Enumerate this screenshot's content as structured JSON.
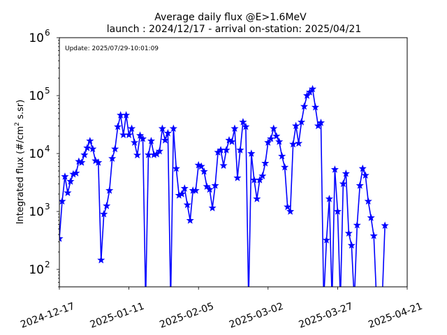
{
  "chart_data": {
    "type": "line",
    "title": "Average daily flux @E>1.6MeV",
    "subtitle": "launch : 2024/12/17 - arrival on-station: 2025/04/21",
    "annotation": "Update: 2025/07/29-10:01:09",
    "xlabel": "",
    "ylabel": {
      "base": "10",
      "prefix": "Integrated flux (#/cm",
      "superscript": "2",
      "suffix": " s.sr)"
    },
    "y_scale": "log",
    "ylim": [
      50,
      1000000
    ],
    "xlim": [
      "2024-12-17",
      "2025-04-21"
    ],
    "x_ticks": [
      "2024-12-17",
      "2025-01-11",
      "2025-02-05",
      "2025-03-02",
      "2025-03-27",
      "2025-04-21"
    ],
    "y_ticks": [
      {
        "value": 100,
        "base": "10",
        "exp": "2"
      },
      {
        "value": 1000,
        "base": "10",
        "exp": "3"
      },
      {
        "value": 10000,
        "base": "10",
        "exp": "4"
      },
      {
        "value": 100000,
        "base": "10",
        "exp": "5"
      },
      {
        "value": 1000000,
        "base": "10",
        "exp": "6"
      }
    ],
    "grid": false,
    "series": [
      {
        "color": "#0000ff",
        "marker": "star",
        "points": [
          {
            "x": "2024-12-17",
            "y": 340
          },
          {
            "x": "2024-12-18",
            "y": 1500
          },
          {
            "x": "2024-12-19",
            "y": 4000
          },
          {
            "x": "2024-12-20",
            "y": 2100
          },
          {
            "x": "2024-12-21",
            "y": 3300
          },
          {
            "x": "2024-12-22",
            "y": 4400
          },
          {
            "x": "2024-12-23",
            "y": 4600
          },
          {
            "x": "2024-12-24",
            "y": 7300
          },
          {
            "x": "2024-12-25",
            "y": 7000
          },
          {
            "x": "2024-12-26",
            "y": 9500
          },
          {
            "x": "2024-12-27",
            "y": 12500
          },
          {
            "x": "2024-12-28",
            "y": 16500
          },
          {
            "x": "2024-12-29",
            "y": 12000
          },
          {
            "x": "2024-12-30",
            "y": 7500
          },
          {
            "x": "2024-12-31",
            "y": 7000
          },
          {
            "x": "2025-01-01",
            "y": 145
          },
          {
            "x": "2025-01-02",
            "y": 900
          },
          {
            "x": "2025-01-03",
            "y": 1250
          },
          {
            "x": "2025-01-04",
            "y": 2300
          },
          {
            "x": "2025-01-05",
            "y": 8200
          },
          {
            "x": "2025-01-06",
            "y": 12000
          },
          {
            "x": "2025-01-07",
            "y": 29000
          },
          {
            "x": "2025-01-08",
            "y": 46000
          },
          {
            "x": "2025-01-09",
            "y": 21000
          },
          {
            "x": "2025-01-10",
            "y": 46000
          },
          {
            "x": "2025-01-11",
            "y": 21000
          },
          {
            "x": "2025-01-12",
            "y": 27000
          },
          {
            "x": "2025-01-13",
            "y": 15500
          },
          {
            "x": "2025-01-14",
            "y": 9400
          },
          {
            "x": "2025-01-15",
            "y": 20500
          },
          {
            "x": "2025-01-16",
            "y": 18000
          },
          {
            "x": "2025-01-17",
            "y": null
          },
          {
            "x": "2025-01-18",
            "y": 9500
          },
          {
            "x": "2025-01-19",
            "y": 16500
          },
          {
            "x": "2025-01-20",
            "y": 9500
          },
          {
            "x": "2025-01-21",
            "y": 9800
          },
          {
            "x": "2025-01-22",
            "y": 11000
          },
          {
            "x": "2025-01-23",
            "y": 27000
          },
          {
            "x": "2025-01-24",
            "y": 17000
          },
          {
            "x": "2025-01-25",
            "y": 22500
          },
          {
            "x": "2025-01-26",
            "y": null
          },
          {
            "x": "2025-01-27",
            "y": 27000
          },
          {
            "x": "2025-01-28",
            "y": 5500
          },
          {
            "x": "2025-01-29",
            "y": 1900
          },
          {
            "x": "2025-01-30",
            "y": 2000
          },
          {
            "x": "2025-01-31",
            "y": 2500
          },
          {
            "x": "2025-02-01",
            "y": 1300
          },
          {
            "x": "2025-02-02",
            "y": 700
          },
          {
            "x": "2025-02-03",
            "y": 2300
          },
          {
            "x": "2025-02-04",
            "y": 2300
          },
          {
            "x": "2025-02-05",
            "y": 6300
          },
          {
            "x": "2025-02-06",
            "y": 6000
          },
          {
            "x": "2025-02-07",
            "y": 4900
          },
          {
            "x": "2025-02-08",
            "y": 2700
          },
          {
            "x": "2025-02-09",
            "y": 2400
          },
          {
            "x": "2025-02-10",
            "y": 1150
          },
          {
            "x": "2025-02-11",
            "y": 2800
          },
          {
            "x": "2025-02-12",
            "y": 10500
          },
          {
            "x": "2025-02-13",
            "y": 11500
          },
          {
            "x": "2025-02-14",
            "y": 6200
          },
          {
            "x": "2025-02-15",
            "y": 11500
          },
          {
            "x": "2025-02-16",
            "y": 17000
          },
          {
            "x": "2025-02-17",
            "y": 16000
          },
          {
            "x": "2025-02-18",
            "y": 27000
          },
          {
            "x": "2025-02-19",
            "y": 3800
          },
          {
            "x": "2025-02-20",
            "y": 11500
          },
          {
            "x": "2025-02-21",
            "y": 35000
          },
          {
            "x": "2025-02-22",
            "y": 29000
          },
          {
            "x": "2025-02-23",
            "y": null
          },
          {
            "x": "2025-02-24",
            "y": 10000
          },
          {
            "x": "2025-02-25",
            "y": 3500
          },
          {
            "x": "2025-02-26",
            "y": 1650
          },
          {
            "x": "2025-02-27",
            "y": 3500
          },
          {
            "x": "2025-02-28",
            "y": 4100
          },
          {
            "x": "2025-03-01",
            "y": 6800
          },
          {
            "x": "2025-03-02",
            "y": 15500
          },
          {
            "x": "2025-03-03",
            "y": 18000
          },
          {
            "x": "2025-03-04",
            "y": 27000
          },
          {
            "x": "2025-03-05",
            "y": 20000
          },
          {
            "x": "2025-03-06",
            "y": 16000
          },
          {
            "x": "2025-03-07",
            "y": 9000
          },
          {
            "x": "2025-03-08",
            "y": 5800
          },
          {
            "x": "2025-03-09",
            "y": 1200
          },
          {
            "x": "2025-03-10",
            "y": 1000
          },
          {
            "x": "2025-03-11",
            "y": 14500
          },
          {
            "x": "2025-03-12",
            "y": 30000
          },
          {
            "x": "2025-03-13",
            "y": 15000
          },
          {
            "x": "2025-03-14",
            "y": 35000
          },
          {
            "x": "2025-03-15",
            "y": 65000
          },
          {
            "x": "2025-03-16",
            "y": 100000
          },
          {
            "x": "2025-03-17",
            "y": 115000
          },
          {
            "x": "2025-03-18",
            "y": 130000
          },
          {
            "x": "2025-03-19",
            "y": 63000
          },
          {
            "x": "2025-03-20",
            "y": 30000
          },
          {
            "x": "2025-03-21",
            "y": 34000
          },
          {
            "x": "2025-03-22",
            "y": null
          },
          {
            "x": "2025-03-23",
            "y": 320
          },
          {
            "x": "2025-03-24",
            "y": 1650
          },
          {
            "x": "2025-03-25",
            "y": null
          },
          {
            "x": "2025-03-26",
            "y": 5300
          },
          {
            "x": "2025-03-27",
            "y": 1000
          },
          {
            "x": "2025-03-28",
            "y": null
          },
          {
            "x": "2025-03-29",
            "y": 3000
          },
          {
            "x": "2025-03-30",
            "y": 4500
          },
          {
            "x": "2025-03-31",
            "y": 420
          },
          {
            "x": "2025-04-01",
            "y": 260
          },
          {
            "x": "2025-04-02",
            "y": null
          },
          {
            "x": "2025-04-03",
            "y": 580
          },
          {
            "x": "2025-04-04",
            "y": 2800
          },
          {
            "x": "2025-04-05",
            "y": 5500
          },
          {
            "x": "2025-04-06",
            "y": 4200
          },
          {
            "x": "2025-04-07",
            "y": 1500
          },
          {
            "x": "2025-04-08",
            "y": 780
          },
          {
            "x": "2025-04-09",
            "y": 380
          },
          {
            "x": "2025-04-10",
            "y": null
          },
          {
            "x": "2025-04-11",
            "y": null
          },
          {
            "x": "2025-04-12",
            "y": null
          },
          {
            "x": "2025-04-13",
            "y": 570
          }
        ]
      }
    ]
  }
}
